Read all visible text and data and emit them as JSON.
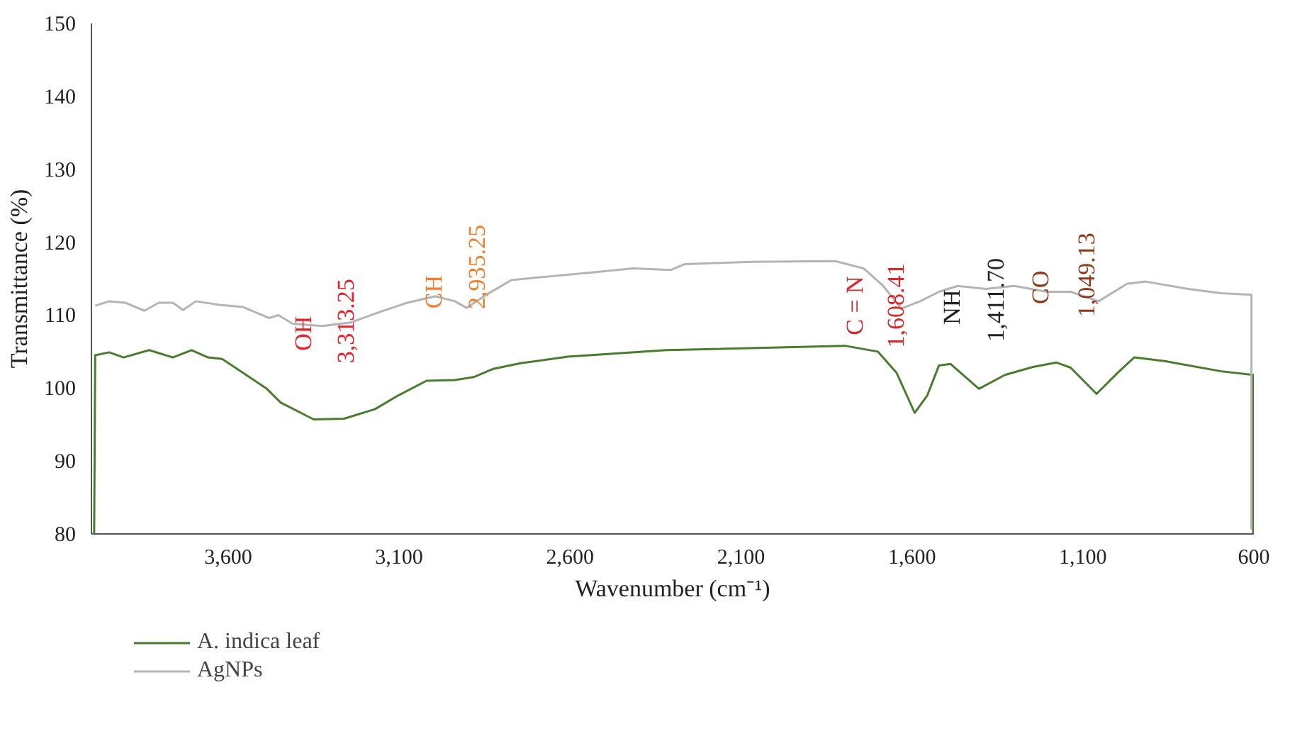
{
  "chart_data": {
    "type": "line",
    "xlabel": "Wavenumber (cm⁻¹)",
    "ylabel": "Transmittance (%)",
    "xlim": [
      4000,
      600
    ],
    "ylim": [
      80,
      150
    ],
    "xticks": [
      {
        "value": 3600,
        "label": "3,600"
      },
      {
        "value": 3100,
        "label": "3,100"
      },
      {
        "value": 2600,
        "label": "2,600"
      },
      {
        "value": 2100,
        "label": "2,100"
      },
      {
        "value": 1600,
        "label": "1,600"
      },
      {
        "value": 1100,
        "label": "1,100"
      },
      600
    ],
    "yticks": [
      80,
      90,
      100,
      110,
      120,
      130,
      140,
      150
    ],
    "grid": false,
    "legend": "bottom left",
    "marker": "none",
    "line_style": "solid",
    "series": [
      {
        "name": "A. indica leaf",
        "color": "#4a7c2f",
        "x": [
          3992,
          3989,
          3948,
          3906,
          3831,
          3762,
          3707,
          3659,
          3618,
          3563,
          3487,
          3446,
          3350,
          3261,
          3171,
          3102,
          3020,
          2937,
          2882,
          2827,
          2745,
          2607,
          2318,
          1796,
          1700,
          1645,
          1592,
          1555,
          1521,
          1487,
          1404,
          1328,
          1246,
          1177,
          1136,
          1060,
          998,
          950,
          861,
          696,
          602,
          602
        ],
        "values": [
          80,
          104.5,
          104.9,
          104.2,
          105.2,
          104.2,
          105.2,
          104.2,
          104.0,
          102.3,
          99.9,
          98.0,
          95.7,
          95.8,
          97.1,
          99.0,
          101.0,
          101.1,
          101.5,
          102.6,
          103.4,
          104.3,
          105.2,
          105.8,
          105.0,
          102.1,
          96.6,
          99.0,
          103.1,
          103.3,
          99.9,
          101.8,
          102.9,
          103.5,
          102.8,
          99.2,
          102.1,
          104.2,
          103.7,
          102.3,
          101.8,
          80
        ]
      },
      {
        "name": "AgNPs",
        "color": "#b4b4b4",
        "x": [
          3989,
          3948,
          3901,
          3845,
          3803,
          3762,
          3732,
          3695,
          3625,
          3556,
          3480,
          3453,
          3411,
          3324,
          3241,
          3159,
          3076,
          2994,
          2937,
          2903,
          2841,
          2772,
          2664,
          2525,
          2416,
          2305,
          2264,
          2071,
          1824,
          1741,
          1686,
          1631,
          1576,
          1521,
          1466,
          1384,
          1301,
          1205,
          1136,
          1054,
          971,
          916,
          792,
          696,
          607,
          607
        ],
        "values": [
          111.3,
          111.9,
          111.7,
          110.6,
          111.7,
          111.7,
          110.7,
          111.9,
          111.4,
          111.1,
          109.6,
          110.0,
          108.8,
          108.5,
          109.0,
          110.4,
          111.7,
          112.6,
          111.9,
          111.0,
          112.9,
          114.8,
          115.3,
          115.9,
          116.4,
          116.2,
          117.0,
          117.3,
          117.4,
          116.4,
          114.1,
          110.9,
          111.9,
          113.2,
          114.0,
          113.6,
          114.0,
          113.2,
          113.2,
          111.9,
          114.3,
          114.6,
          113.6,
          113.0,
          112.8,
          80.6
        ]
      }
    ],
    "annotations": [
      "OH",
      "3,313.25",
      "CH",
      "2,935.25",
      "C = N",
      "1,608.41",
      "NH",
      "1,411.70",
      "CO",
      "1,049.13"
    ]
  }
}
